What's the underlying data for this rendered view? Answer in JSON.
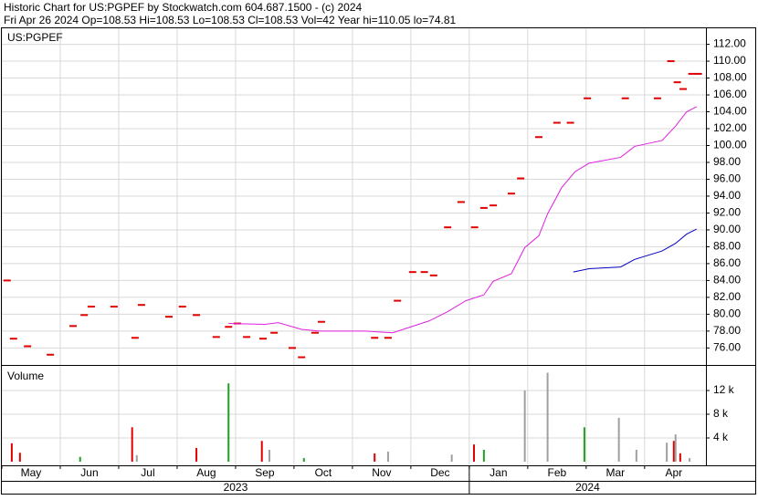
{
  "header": {
    "line1": "Historic Chart for US:PGPEF by Stockwatch.com 604.687.1500 - (c) 2024",
    "line2": "Fri Apr 26 2024   Op=108.53  Hi=108.53  Lo=108.53  Cl=108.53  Vol=42  Year hi=110.05  lo=74.81"
  },
  "chart_data": [
    {
      "type": "line",
      "title": "US:PGPEF",
      "xlim": [
        0,
        12.05
      ],
      "ylim": [
        74.2,
        113.9
      ],
      "yticks": [
        {
          "value": 76,
          "label": "76.00"
        },
        {
          "value": 78,
          "label": "78.00"
        },
        {
          "value": 80,
          "label": "80.00"
        },
        {
          "value": 82,
          "label": "82.00"
        },
        {
          "value": 84,
          "label": "84.00"
        },
        {
          "value": 86,
          "label": "86.00"
        },
        {
          "value": 88,
          "label": "88.00"
        },
        {
          "value": 90,
          "label": "90.00"
        },
        {
          "value": 92,
          "label": "92.00"
        },
        {
          "value": 94,
          "label": "94.00"
        },
        {
          "value": 96,
          "label": "96.00"
        },
        {
          "value": 98,
          "label": "98.00"
        },
        {
          "value": 100,
          "label": "100.00"
        },
        {
          "value": 102,
          "label": "102.00"
        },
        {
          "value": 104,
          "label": "104.00"
        },
        {
          "value": 106,
          "label": "106.00"
        },
        {
          "value": 108,
          "label": "108.00"
        },
        {
          "value": 110,
          "label": "110.00"
        },
        {
          "value": 112,
          "label": "112.00"
        }
      ],
      "grid": true,
      "series": [
        {
          "color": "#e00000",
          "marker": "dash",
          "x": [
            0.09,
            0.2,
            0.44,
            0.83,
            1.22,
            1.41,
            1.53,
            1.92,
            2.28,
            2.39,
            2.86,
            3.09,
            3.33,
            3.67,
            3.88,
            4.03,
            4.19,
            4.47,
            4.66,
            4.97,
            5.13,
            5.36,
            5.47,
            6.38,
            6.61,
            6.77,
            7.03,
            7.23,
            7.39,
            7.63,
            7.86,
            8.09,
            8.25,
            8.41,
            8.72,
            8.88,
            9.19,
            9.5,
            9.73,
            10.02,
            10.67,
            11.22,
            11.45,
            11.56,
            11.66,
            11.81,
            11.92
          ],
          "values": [
            84.0,
            77.1,
            76.2,
            75.2,
            78.6,
            79.9,
            80.9,
            80.9,
            77.2,
            81.1,
            79.7,
            80.9,
            79.9,
            77.3,
            78.5,
            78.9,
            77.3,
            77.1,
            77.8,
            76.0,
            74.9,
            77.8,
            79.1,
            77.2,
            77.2,
            81.6,
            85.0,
            85.0,
            84.6,
            90.3,
            93.3,
            90.3,
            92.6,
            92.9,
            94.3,
            96.1,
            101.0,
            102.7,
            102.7,
            105.6,
            105.6,
            105.6,
            110.0,
            107.5,
            106.7,
            108.5,
            108.5
          ]
        },
        {
          "color": "#e020e0",
          "marker": "line",
          "x": [
            3.88,
            4.5,
            4.73,
            5.13,
            5.44,
            6.22,
            6.69,
            7.31,
            7.63,
            7.94,
            8.25,
            8.41,
            8.72,
            8.95,
            9.19,
            9.34,
            9.58,
            9.81,
            10.05,
            10.59,
            10.83,
            11.3,
            11.53,
            11.72,
            11.89
          ],
          "values": [
            78.9,
            78.8,
            79.0,
            78.2,
            78.0,
            78.0,
            77.8,
            79.2,
            80.3,
            81.6,
            82.3,
            83.9,
            84.8,
            87.9,
            89.3,
            91.9,
            95.0,
            96.9,
            97.9,
            98.6,
            99.9,
            100.6,
            102.3,
            104.0,
            104.6
          ]
        },
        {
          "color": "#0000c0",
          "marker": "line",
          "x": [
            9.78,
            10.05,
            10.59,
            10.83,
            11.3,
            11.53,
            11.72,
            11.89
          ],
          "values": [
            85.0,
            85.4,
            85.6,
            86.5,
            87.5,
            88.4,
            89.5,
            90.1
          ]
        }
      ]
    },
    {
      "type": "bar",
      "title": "Volume",
      "xlim": [
        0,
        12.05
      ],
      "ylim": [
        0,
        16000
      ],
      "yticks": [
        {
          "value": 4000,
          "label": "4 k"
        },
        {
          "value": 8000,
          "label": "8 k"
        },
        {
          "value": 12000,
          "label": "12 k"
        }
      ],
      "grid": true,
      "xticks": [
        {
          "value": 0,
          "label": "May"
        },
        {
          "value": 1,
          "label": "Jun"
        },
        {
          "value": 2,
          "label": "Jul"
        },
        {
          "value": 3,
          "label": "Aug"
        },
        {
          "value": 4,
          "label": "Sep"
        },
        {
          "value": 5,
          "label": "Oct"
        },
        {
          "value": 6,
          "label": "Nov"
        },
        {
          "value": 7,
          "label": "Dec"
        },
        {
          "value": 8,
          "label": "Jan"
        },
        {
          "value": 9,
          "label": "Feb"
        },
        {
          "value": 10,
          "label": "Mar"
        },
        {
          "value": 11,
          "label": "Apr"
        }
      ],
      "year_ticks": [
        {
          "value": 0,
          "label": "2023"
        },
        {
          "value": 8,
          "label": "2024"
        }
      ],
      "x": [
        0.17,
        0.31,
        2.23,
        3.33,
        4.45,
        6.38,
        8.08,
        11.5,
        11.61,
        1.34,
        3.88,
        5.17,
        8.25,
        9.97,
        2.31,
        4.58,
        6.61,
        7.7,
        8.95,
        9.34,
        10.56,
        10.86,
        11.38,
        11.53,
        11.77
      ],
      "values": [
        3100,
        1500,
        5800,
        2300,
        3500,
        1400,
        2900,
        3500,
        1400,
        800,
        13200,
        600,
        2000,
        5800,
        1100,
        2000,
        1700,
        1200,
        12000,
        15000,
        7400,
        2000,
        3200,
        4600,
        600
      ],
      "colors": [
        "#e00000",
        "#e00000",
        "#e00000",
        "#e00000",
        "#e00000",
        "#e00000",
        "#e00000",
        "#e00000",
        "#e00000",
        "#20a020",
        "#20a020",
        "#20a020",
        "#20a020",
        "#20a020",
        "#a0a0a0",
        "#a0a0a0",
        "#a0a0a0",
        "#a0a0a0",
        "#a0a0a0",
        "#a0a0a0",
        "#a0a0a0",
        "#a0a0a0",
        "#a0a0a0",
        "#a0a0a0",
        "#a0a0a0"
      ]
    }
  ]
}
